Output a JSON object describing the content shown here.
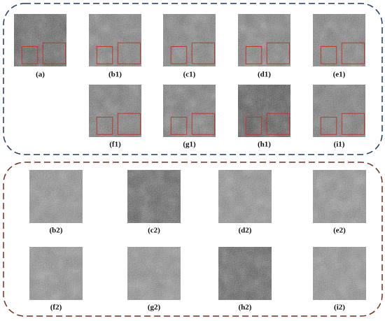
{
  "top_panels": [
    {
      "label": "(a)"
    },
    {
      "label": "(b1)"
    },
    {
      "label": "(c1)"
    },
    {
      "label": "(d1)"
    },
    {
      "label": "(e1)"
    },
    {
      "label": "(f1)"
    },
    {
      "label": "(g1)"
    },
    {
      "label": "(h1)"
    },
    {
      "label": "(i1)"
    }
  ],
  "bottom_panels": [
    {
      "label": "(b2)"
    },
    {
      "label": "(c2)"
    },
    {
      "label": "(d2)"
    },
    {
      "label": "(e2)"
    },
    {
      "label": "(f2)"
    },
    {
      "label": "(g2)"
    },
    {
      "label": "(h2)"
    },
    {
      "label": "(i2)"
    }
  ]
}
